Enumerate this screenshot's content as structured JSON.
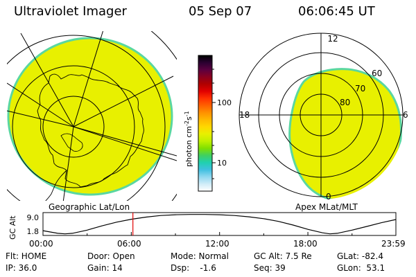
{
  "header": {
    "title": "Ultraviolet Imager",
    "date": "05 Sep 07",
    "time": "06:06:45 UT"
  },
  "colors": {
    "aurora_fill": "#e8f000",
    "aurora_edge": "#5ad7a0",
    "marker": "#e00000"
  },
  "left_panel": {
    "label": "Geographic Lat/Lon",
    "color_level": "yellow-green (~20 photon cm^-2 s^-1)"
  },
  "right_panel": {
    "label": "Apex MLat/MLT",
    "mlt_labels": [
      "12",
      "6",
      "0",
      "18"
    ],
    "mlat_labels": [
      "60",
      "70",
      "80"
    ]
  },
  "colorbar": {
    "title": "photon cm",
    "exp1": "-2",
    "mid": "s",
    "exp2": "-1",
    "ticks": [
      "100",
      "10"
    ],
    "stops": [
      "#000000",
      "#2a0030",
      "#5a0040",
      "#8a0020",
      "#b00000",
      "#e00000",
      "#ff3000",
      "#ff6000",
      "#ff9000",
      "#ffb800",
      "#ffd800",
      "#e8f000",
      "#c0f000",
      "#80e000",
      "#40d060",
      "#20d0b0",
      "#40c0e0",
      "#90d8f0",
      "#d0ecf8",
      "#ffffff"
    ]
  },
  "altitude_plot": {
    "ylabel": "GC Alt",
    "yticks": [
      "9.0",
      "1.8"
    ],
    "xticks": [
      "00:00",
      "06:00",
      "12:00",
      "18:00",
      "23:59"
    ]
  },
  "chart_data": {
    "type": "line",
    "title": "",
    "xlabel": "",
    "ylabel": "GC Alt",
    "x_hours": [
      0,
      1,
      1.5,
      2,
      3,
      4,
      5,
      6,
      7,
      8,
      9,
      10,
      11,
      12,
      13,
      14,
      15,
      16,
      17,
      18,
      19,
      19.5,
      20,
      21,
      22,
      23,
      23.98
    ],
    "y_re": [
      3.0,
      2.0,
      1.8,
      2.0,
      3.2,
      4.8,
      6.2,
      7.3,
      8.1,
      8.7,
      9.0,
      9.1,
      9.1,
      9.0,
      8.7,
      8.2,
      7.5,
      6.5,
      5.1,
      3.5,
      2.2,
      1.8,
      2.0,
      3.2,
      4.6,
      6.0,
      7.2
    ],
    "ylim": [
      1.8,
      9.0
    ],
    "xlim": [
      0,
      23.98
    ],
    "marker_hour": 6.11
  },
  "status": {
    "flt": "Flt: HOME",
    "door": "Door: Open",
    "mode": "Mode: Normal",
    "gc_alt": "GC Alt: 7.5 Re",
    "glat": "GLat: -82.4",
    "ip": "IP: 36.0",
    "gain": "Gain: 14",
    "dsp": "Dsp:    -1.6",
    "seq": "Seq: 39",
    "glon": "GLon:  53.1"
  }
}
